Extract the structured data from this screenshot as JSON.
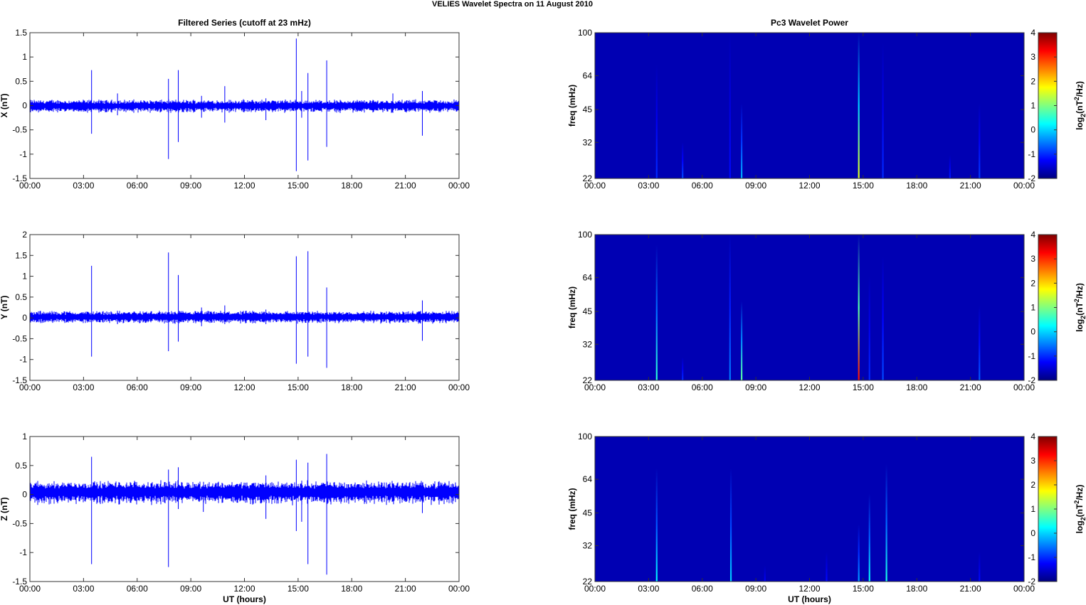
{
  "figure": {
    "title": "VELIES Wavelet Spectra on 11 August    2010"
  },
  "chart_data": [
    {
      "id": "x-series",
      "type": "line",
      "title": "Filtered Series (cutoff at 23 mHz)",
      "xlabel": "",
      "ylabel": "X (nT)",
      "x_ticks": [
        "00:00",
        "03:00",
        "06:00",
        "09:00",
        "12:00",
        "15:00",
        "18:00",
        "21:00",
        "00:00"
      ],
      "y_ticks": [
        -1.5,
        -1,
        -0.5,
        0,
        0.5,
        1,
        1.5
      ],
      "y_tick_labels": [
        "-1.5",
        "-1",
        "-0.5",
        "0",
        "0.5",
        "1",
        "1.5"
      ],
      "xlim": [
        0,
        24
      ],
      "ylim": [
        -1.5,
        1.5
      ],
      "line_color": "#0000ff",
      "noise_level": 0.08,
      "noise_offset": 0.0,
      "spikes": [
        {
          "t": 3.45,
          "max": 0.73,
          "min": -0.58
        },
        {
          "t": 4.9,
          "max": 0.25,
          "min": -0.2
        },
        {
          "t": 7.75,
          "max": 0.55,
          "min": -1.1
        },
        {
          "t": 8.3,
          "max": 0.73,
          "min": -0.75
        },
        {
          "t": 9.6,
          "max": 0.2,
          "min": -0.25
        },
        {
          "t": 10.9,
          "max": 0.4,
          "min": -0.35
        },
        {
          "t": 13.2,
          "max": 0.15,
          "min": -0.3
        },
        {
          "t": 14.9,
          "max": 1.38,
          "min": -1.35
        },
        {
          "t": 15.2,
          "max": 0.3,
          "min": -0.25
        },
        {
          "t": 15.55,
          "max": 0.67,
          "min": -1.13
        },
        {
          "t": 16.6,
          "max": 0.93,
          "min": -0.85
        },
        {
          "t": 20.3,
          "max": 0.25,
          "min": -0.15
        },
        {
          "t": 21.95,
          "max": 0.3,
          "min": -0.62
        }
      ]
    },
    {
      "id": "y-series",
      "type": "line",
      "title": "",
      "xlabel": "",
      "ylabel": "Y (nT)",
      "x_ticks": [
        "00:00",
        "03:00",
        "06:00",
        "09:00",
        "12:00",
        "15:00",
        "18:00",
        "21:00",
        "00:00"
      ],
      "y_ticks": [
        -1.5,
        -1,
        -0.5,
        0,
        0.5,
        1,
        1.5,
        2
      ],
      "y_tick_labels": [
        "-1.5",
        "-1",
        "-0.5",
        "0",
        "0.5",
        "1",
        "1.5",
        "2"
      ],
      "xlim": [
        0,
        24
      ],
      "ylim": [
        -1.5,
        2
      ],
      "line_color": "#0000ff",
      "noise_level": 0.09,
      "noise_offset": 0.03,
      "spikes": [
        {
          "t": 3.45,
          "max": 1.25,
          "min": -0.93
        },
        {
          "t": 4.9,
          "max": 0.1,
          "min": -0.15
        },
        {
          "t": 7.75,
          "max": 1.57,
          "min": -0.8
        },
        {
          "t": 8.3,
          "max": 1.03,
          "min": -0.57
        },
        {
          "t": 9.6,
          "max": 0.25,
          "min": -0.2
        },
        {
          "t": 10.9,
          "max": 0.3,
          "min": -0.15
        },
        {
          "t": 13.2,
          "max": 0.2,
          "min": -0.15
        },
        {
          "t": 14.9,
          "max": 1.48,
          "min": -1.1
        },
        {
          "t": 15.55,
          "max": 1.6,
          "min": -0.93
        },
        {
          "t": 16.6,
          "max": 0.73,
          "min": -1.2
        },
        {
          "t": 21.95,
          "max": 0.42,
          "min": -0.55
        }
      ]
    },
    {
      "id": "z-series",
      "type": "line",
      "title": "",
      "xlabel": "UT (hours)",
      "ylabel": "Z (nT)",
      "x_ticks": [
        "00:00",
        "03:00",
        "06:00",
        "09:00",
        "12:00",
        "15:00",
        "18:00",
        "21:00",
        "00:00"
      ],
      "y_ticks": [
        -1.5,
        -1,
        -0.5,
        0,
        0.5,
        1
      ],
      "y_tick_labels": [
        "-1.5",
        "-1",
        "-0.5",
        "0",
        "0.5",
        "1"
      ],
      "xlim": [
        0,
        24
      ],
      "ylim": [
        -1.5,
        1
      ],
      "line_color": "#0000ff",
      "noise_level": 0.12,
      "noise_offset": 0.05,
      "spikes": [
        {
          "t": 3.45,
          "max": 0.65,
          "min": -1.2
        },
        {
          "t": 7.75,
          "max": 0.43,
          "min": -1.25
        },
        {
          "t": 8.3,
          "max": 0.47,
          "min": -0.25
        },
        {
          "t": 9.7,
          "max": 0.1,
          "min": -0.3
        },
        {
          "t": 13.2,
          "max": 0.33,
          "min": -0.42
        },
        {
          "t": 14.9,
          "max": 0.6,
          "min": -0.63
        },
        {
          "t": 15.2,
          "max": 0.2,
          "min": -0.47
        },
        {
          "t": 15.55,
          "max": 0.55,
          "min": -1.2
        },
        {
          "t": 16.6,
          "max": 0.7,
          "min": -1.38
        },
        {
          "t": 21.95,
          "max": 0.2,
          "min": -0.32
        }
      ]
    },
    {
      "id": "x-wavelet",
      "type": "heatmap",
      "title": "Pc3 Wavelet Power",
      "xlabel": "",
      "ylabel": "freq (mHz)",
      "x_ticks": [
        "00:00",
        "03:00",
        "06:00",
        "09:00",
        "12:00",
        "15:00",
        "18:00",
        "21:00",
        "00:00"
      ],
      "y_ticks": [
        22,
        32,
        45,
        64,
        100
      ],
      "y_tick_labels": [
        "22",
        "32",
        "45",
        "64",
        "100"
      ],
      "xlim": [
        0,
        24
      ],
      "ylim": [
        22,
        100
      ],
      "y_scale": "log",
      "background_value": -1.7,
      "events": [
        {
          "t": 3.45,
          "fmax": 72,
          "peak": -1.0
        },
        {
          "t": 4.9,
          "fmax": 32,
          "peak": -0.8
        },
        {
          "t": 7.55,
          "fmax": 100,
          "peak": -1.2
        },
        {
          "t": 8.2,
          "fmax": 48,
          "peak": -0.2
        },
        {
          "t": 14.75,
          "fmax": 100,
          "peak": 1.6
        },
        {
          "t": 16.1,
          "fmax": 90,
          "peak": -1.0
        },
        {
          "t": 19.85,
          "fmax": 28,
          "peak": -1.1
        },
        {
          "t": 21.5,
          "fmax": 48,
          "peak": -0.9
        }
      ],
      "colorbar": {
        "label": "log2(nT^2/Hz)",
        "ticks": [
          -2,
          -1,
          0,
          1,
          2,
          3,
          4
        ],
        "tick_labels": [
          "-2",
          "-1",
          "0",
          "1",
          "2",
          "3",
          "4"
        ],
        "range": [
          -2,
          4
        ]
      }
    },
    {
      "id": "y-wavelet",
      "type": "heatmap",
      "title": "",
      "xlabel": "",
      "ylabel": "freq (mHz)",
      "x_ticks": [
        "00:00",
        "03:00",
        "06:00",
        "09:00",
        "12:00",
        "15:00",
        "18:00",
        "21:00",
        "00:00"
      ],
      "y_ticks": [
        22,
        32,
        45,
        64,
        100
      ],
      "y_tick_labels": [
        "22",
        "32",
        "45",
        "64",
        "100"
      ],
      "xlim": [
        0,
        24
      ],
      "ylim": [
        22,
        100
      ],
      "y_scale": "log",
      "background_value": -1.7,
      "events": [
        {
          "t": 3.45,
          "fmax": 90,
          "peak": 0.5
        },
        {
          "t": 4.9,
          "fmax": 28,
          "peak": -1.0
        },
        {
          "t": 7.55,
          "fmax": 100,
          "peak": -0.5
        },
        {
          "t": 8.2,
          "fmax": 50,
          "peak": 0.8
        },
        {
          "t": 14.75,
          "fmax": 100,
          "peak": 3.2
        },
        {
          "t": 15.35,
          "fmax": 65,
          "peak": -1.0
        },
        {
          "t": 16.1,
          "fmax": 80,
          "peak": -0.8
        },
        {
          "t": 21.5,
          "fmax": 48,
          "peak": -0.7
        }
      ],
      "colorbar": {
        "label": "log2(nT^2/Hz)",
        "ticks": [
          -2,
          -1,
          0,
          1,
          2,
          3,
          4
        ],
        "tick_labels": [
          "-2",
          "-1",
          "0",
          "1",
          "2",
          "3",
          "4"
        ],
        "range": [
          -2,
          4
        ]
      }
    },
    {
      "id": "z-wavelet",
      "type": "heatmap",
      "title": "",
      "xlabel": "UT (hours)",
      "ylabel": "freq (mHz)",
      "x_ticks": [
        "00:00",
        "03:00",
        "06:00",
        "09:00",
        "12:00",
        "15:00",
        "18:00",
        "21:00",
        "00:00"
      ],
      "y_ticks": [
        22,
        32,
        45,
        64,
        100
      ],
      "y_tick_labels": [
        "22",
        "32",
        "45",
        "64",
        "100"
      ],
      "xlim": [
        0,
        24
      ],
      "ylim": [
        22,
        100
      ],
      "y_scale": "log",
      "background_value": -1.7,
      "events": [
        {
          "t": 3.45,
          "fmax": 72,
          "peak": 0.2
        },
        {
          "t": 7.6,
          "fmax": 72,
          "peak": 0.0
        },
        {
          "t": 9.5,
          "fmax": 26,
          "peak": -1.3
        },
        {
          "t": 12.95,
          "fmax": 30,
          "peak": -1.2
        },
        {
          "t": 14.75,
          "fmax": 40,
          "peak": -0.3
        },
        {
          "t": 15.35,
          "fmax": 55,
          "peak": 0.3
        },
        {
          "t": 16.3,
          "fmax": 75,
          "peak": 0.4
        },
        {
          "t": 21.5,
          "fmax": 30,
          "peak": -1.2
        }
      ],
      "colorbar": {
        "label": "log2(nT^2/Hz)",
        "ticks": [
          -2,
          -1,
          0,
          1,
          2,
          3,
          4
        ],
        "tick_labels": [
          "-2",
          "-1",
          "0",
          "1",
          "2",
          "3",
          "4"
        ],
        "range": [
          -2,
          4
        ]
      }
    }
  ]
}
